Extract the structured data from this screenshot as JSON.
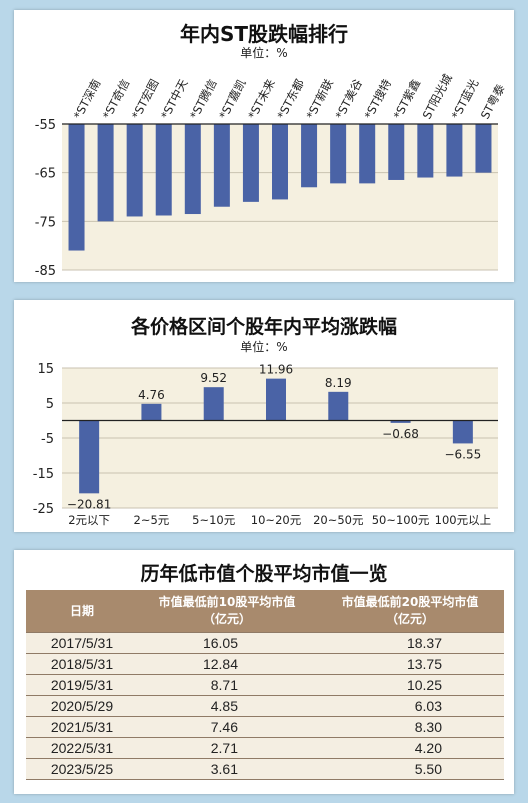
{
  "charts": [
    {
      "type": "bar",
      "title": "年内ST股跌幅排行",
      "unit": "单位：%",
      "categories": [
        "*ST深南",
        "*ST奇信",
        "*ST宏图",
        "*ST中天",
        "*ST腾信",
        "*ST嘉凯",
        "*ST未来",
        "*ST东都",
        "*ST新联",
        "*ST美谷",
        "*ST搜特",
        "*ST紫鑫",
        "ST阳光城",
        "*ST蓝光",
        "ST粤泰"
      ],
      "values": [
        -81,
        -75,
        -74,
        -73.8,
        -73.5,
        -72,
        -71,
        -70.5,
        -68,
        -67.2,
        -67.2,
        -66.5,
        -66,
        -65.8,
        -65
      ],
      "ylim": [
        -85,
        -55
      ],
      "yticks": [
        -55,
        -65,
        -75,
        -85
      ],
      "grid": true,
      "bar_color": "#4a63a6"
    },
    {
      "type": "bar",
      "title": "各价格区间个股年内平均涨跌幅",
      "unit": "单位：%",
      "categories": [
        "2元以下",
        "2~5元",
        "5~10元",
        "10~20元",
        "20~50元",
        "50~100元",
        "100元以上"
      ],
      "values": [
        -20.81,
        4.76,
        9.52,
        11.96,
        8.19,
        -0.68,
        -6.55
      ],
      "value_labels": [
        "−20.81",
        "4.76",
        "9.52",
        "11.96",
        "8.19",
        "−0.68",
        "−6.55"
      ],
      "ylim": [
        -25,
        15
      ],
      "yticks": [
        15,
        5,
        -5,
        -15,
        -25
      ],
      "grid": true,
      "bar_color": "#4a63a6"
    }
  ],
  "chart_data": [
    {
      "type": "bar",
      "title": "年内ST股跌幅排行",
      "categories": [
        "*ST深南",
        "*ST奇信",
        "*ST宏图",
        "*ST中天",
        "*ST腾信",
        "*ST嘉凯",
        "*ST未来",
        "*ST东都",
        "*ST新联",
        "*ST美谷",
        "*ST搜特",
        "*ST紫鑫",
        "ST阳光城",
        "*ST蓝光",
        "ST粤泰"
      ],
      "values": [
        -81,
        -75,
        -74,
        -73.8,
        -73.5,
        -72,
        -71,
        -70.5,
        -68,
        -67.2,
        -67.2,
        -66.5,
        -66,
        -65.8,
        -65
      ],
      "ylabel": "单位：%",
      "ylim": [
        -85,
        -55
      ]
    },
    {
      "type": "bar",
      "title": "各价格区间个股年内平均涨跌幅",
      "categories": [
        "2元以下",
        "2~5元",
        "5~10元",
        "10~20元",
        "20~50元",
        "50~100元",
        "100元以上"
      ],
      "values": [
        -20.81,
        4.76,
        9.52,
        11.96,
        8.19,
        -0.68,
        -6.55
      ],
      "ylabel": "单位：%",
      "ylim": [
        -25,
        15
      ]
    },
    {
      "type": "table",
      "title": "历年低市值个股平均市值一览",
      "columns": [
        "日期",
        "市值最低前10股平均市值（亿元）",
        "市值最低前20股平均市值（亿元）"
      ],
      "rows": [
        [
          "2017/5/31",
          16.05,
          18.37
        ],
        [
          "2018/5/31",
          12.84,
          13.75
        ],
        [
          "2019/5/31",
          8.71,
          10.25
        ],
        [
          "2020/5/29",
          4.85,
          6.03
        ],
        [
          "2021/5/31",
          7.46,
          8.3
        ],
        [
          "2022/5/31",
          2.71,
          4.2
        ],
        [
          "2023/5/25",
          3.61,
          5.5
        ]
      ]
    }
  ],
  "table": {
    "title": "历年低市值个股平均市值一览",
    "headers": {
      "date": "日期",
      "col1_line1": "市值最低前10股平均市值",
      "col1_line2": "（亿元）",
      "col2_line1": "市值最低前20股平均市值",
      "col2_line2": "（亿元）"
    },
    "rows": [
      {
        "date": "2017/5/31",
        "v10": "16.05",
        "v20": "18.37"
      },
      {
        "date": "2018/5/31",
        "v10": "12.84",
        "v20": "13.75"
      },
      {
        "date": "2019/5/31",
        "v10": "8.71",
        "v20": "10.25"
      },
      {
        "date": "2020/5/29",
        "v10": "4.85",
        "v20": "6.03"
      },
      {
        "date": "2021/5/31",
        "v10": "7.46",
        "v20": "8.30"
      },
      {
        "date": "2022/5/31",
        "v10": "2.71",
        "v20": "4.20"
      },
      {
        "date": "2023/5/25",
        "v10": "3.61",
        "v20": "5.50"
      }
    ]
  },
  "colors": {
    "page_bg": "#b9d7e9",
    "plot_bg": "#f5f0e0",
    "bar": "#4a63a6",
    "table_header": "#a88a6d",
    "table_row": "#f4eee2"
  }
}
